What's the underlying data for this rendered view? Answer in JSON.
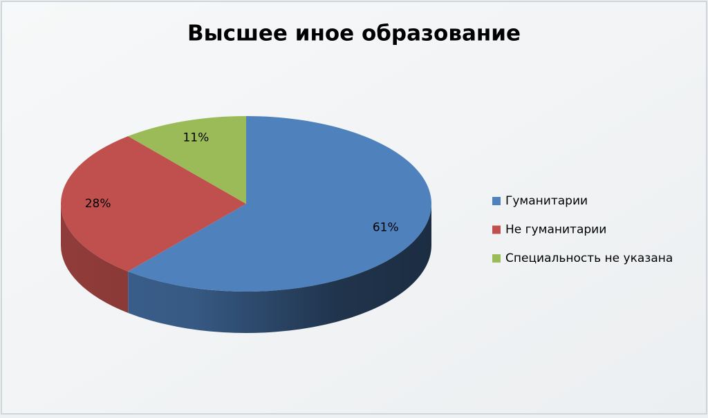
{
  "chart_data": {
    "type": "pie3d",
    "title": "Высшее иное образование",
    "categories": [
      "Гуманитарии",
      "Не гуманитарии",
      "Специальность не указана"
    ],
    "values": [
      61,
      28,
      11
    ],
    "value_labels": [
      "61%",
      "28%",
      "11%"
    ],
    "colors": [
      "#4f81bd",
      "#c0504d",
      "#9bbb59"
    ],
    "legend": "right"
  }
}
